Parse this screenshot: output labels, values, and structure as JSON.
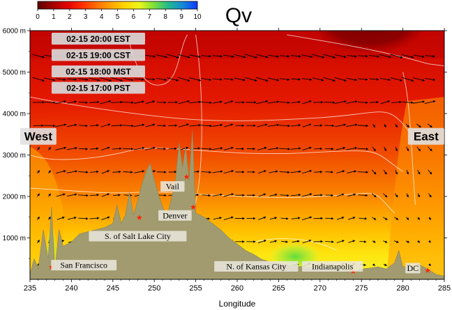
{
  "chart_data": {
    "type": "heatmap",
    "title": "Qv",
    "xlabel": "Longitude",
    "ylabel": "",
    "xlim": [
      235,
      285
    ],
    "ylim": [
      0,
      6000
    ],
    "x_ticks": [
      235,
      240,
      245,
      250,
      255,
      260,
      265,
      270,
      275,
      280,
      285
    ],
    "y_ticks": [
      {
        "value": 1000,
        "label": "1000 m"
      },
      {
        "value": 2000,
        "label": "2000 m"
      },
      {
        "value": 3000,
        "label": "3000 m"
      },
      {
        "value": 4000,
        "label": "4000 m"
      },
      {
        "value": 5000,
        "label": "5000 m"
      },
      {
        "value": 6000,
        "label": "6000 m"
      }
    ],
    "colorbar": {
      "range": [
        0,
        10
      ],
      "ticks": [
        0,
        1,
        2,
        3,
        4,
        5,
        6,
        7,
        8,
        9,
        10
      ],
      "colors": [
        "#5c0000",
        "#a00000",
        "#e00000",
        "#ff2a00",
        "#ff6a00",
        "#ffa200",
        "#ffd600",
        "#eef51a",
        "#7ee03a",
        "#1fb98f",
        "#1688d8",
        "#0a38ff"
      ]
    },
    "time_labels": [
      "02-15 20:00 EST",
      "02-15 19:00 CST",
      "02-15 18:00 MST",
      "02-15 17:00 PST"
    ],
    "region_labels": [
      {
        "text": "West",
        "lon": 236.0,
        "alt": 3450
      },
      {
        "text": "East",
        "lon": 282.8,
        "alt": 3450
      }
    ],
    "places": [
      {
        "name": "San Francisco",
        "lon": 241.5,
        "alt": 300,
        "marker_lon": 237.6,
        "marker_alt": 300
      },
      {
        "name": "S. of Salt Lake City",
        "lon": 248.0,
        "alt": 1000,
        "marker_lon": 248.2,
        "marker_alt": 1500
      },
      {
        "name": "Denver",
        "lon": 252.5,
        "alt": 1500,
        "marker_lon": 254.7,
        "marker_alt": 1750
      },
      {
        "name": "Vail",
        "lon": 252.2,
        "alt": 2200,
        "marker_lon": 253.9,
        "marker_alt": 2480
      },
      {
        "name": "N. of Kansas City",
        "lon": 262.3,
        "alt": 270,
        "marker_lon": 265.6,
        "marker_alt": 320
      },
      {
        "name": "Indianapolis",
        "lon": 271.5,
        "alt": 270,
        "marker_lon": 274.0,
        "marker_alt": 200
      },
      {
        "name": "DC",
        "lon": 281.2,
        "alt": 230,
        "marker_lon": 283.0,
        "marker_alt": 220
      }
    ],
    "terrain": [
      [
        235.0,
        120
      ],
      [
        235.5,
        500
      ],
      [
        236.0,
        260
      ],
      [
        236.6,
        1200
      ],
      [
        237.2,
        500
      ],
      [
        237.6,
        1750
      ],
      [
        238.0,
        200
      ],
      [
        238.5,
        1200
      ],
      [
        239.0,
        800
      ],
      [
        240.0,
        900
      ],
      [
        241.0,
        1100
      ],
      [
        242.0,
        1150
      ],
      [
        243.0,
        1200
      ],
      [
        244.0,
        1250
      ],
      [
        245.0,
        1350
      ],
      [
        245.5,
        1800
      ],
      [
        246.0,
        1350
      ],
      [
        246.5,
        1550
      ],
      [
        247.0,
        2100
      ],
      [
        247.5,
        1550
      ],
      [
        248.0,
        1900
      ],
      [
        248.5,
        2300
      ],
      [
        249.0,
        2600
      ],
      [
        249.5,
        2800
      ],
      [
        250.0,
        2400
      ],
      [
        250.5,
        2050
      ],
      [
        251.0,
        1750
      ],
      [
        251.5,
        1500
      ],
      [
        252.0,
        1900
      ],
      [
        252.5,
        2300
      ],
      [
        253.0,
        3300
      ],
      [
        253.4,
        2700
      ],
      [
        253.8,
        3200
      ],
      [
        254.2,
        2400
      ],
      [
        254.6,
        3600
      ],
      [
        255.0,
        1600
      ],
      [
        256.0,
        1500
      ],
      [
        257.0,
        1350
      ],
      [
        258.0,
        1200
      ],
      [
        259.0,
        1000
      ],
      [
        260.0,
        850
      ],
      [
        261.0,
        700
      ],
      [
        262.0,
        600
      ],
      [
        263.0,
        480
      ],
      [
        264.0,
        420
      ],
      [
        265.0,
        380
      ],
      [
        266.0,
        340
      ],
      [
        267.0,
        320
      ],
      [
        268.0,
        300
      ],
      [
        269.0,
        280
      ],
      [
        270.0,
        270
      ],
      [
        271.0,
        250
      ],
      [
        272.0,
        220
      ],
      [
        273.0,
        250
      ],
      [
        274.0,
        200
      ],
      [
        275.0,
        250
      ],
      [
        276.0,
        270
      ],
      [
        277.0,
        300
      ],
      [
        278.0,
        250
      ],
      [
        279.0,
        400
      ],
      [
        279.5,
        700
      ],
      [
        280.0,
        300
      ],
      [
        281.0,
        300
      ],
      [
        281.5,
        150
      ],
      [
        282.0,
        350
      ],
      [
        283.0,
        250
      ],
      [
        284.0,
        120
      ],
      [
        285.0,
        80
      ]
    ],
    "contour_levels": [
      0.5,
      1,
      2,
      3,
      4
    ]
  }
}
